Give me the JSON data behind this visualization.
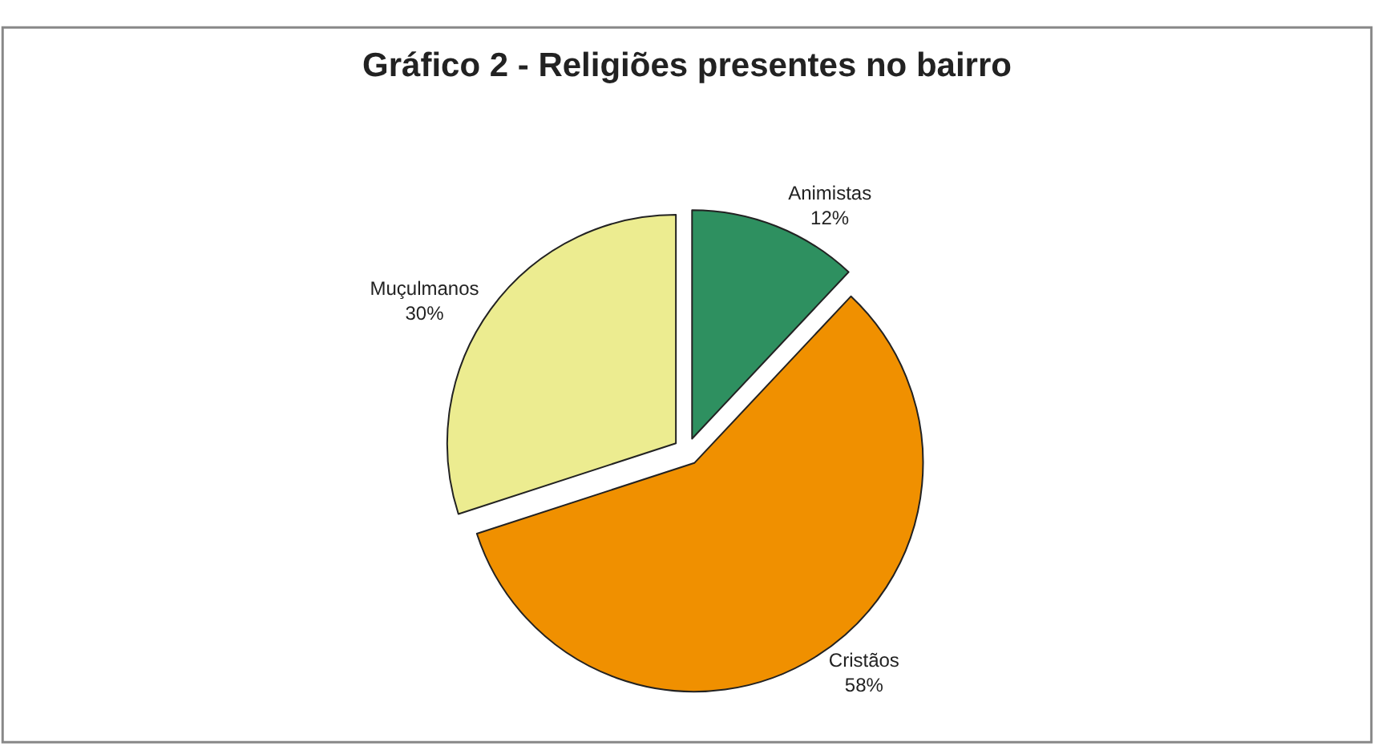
{
  "chart_data": {
    "type": "pie",
    "title": "Gráfico 2 - Religiões presentes no bairro",
    "categories": [
      "Animistas",
      "Cristãos",
      "Muçulmanos"
    ],
    "values": [
      12,
      58,
      30
    ],
    "value_labels": [
      "12%",
      "58%",
      "30%"
    ],
    "colors": [
      "#2e9060",
      "#f09000",
      "#ecec90"
    ],
    "legend": false
  }
}
